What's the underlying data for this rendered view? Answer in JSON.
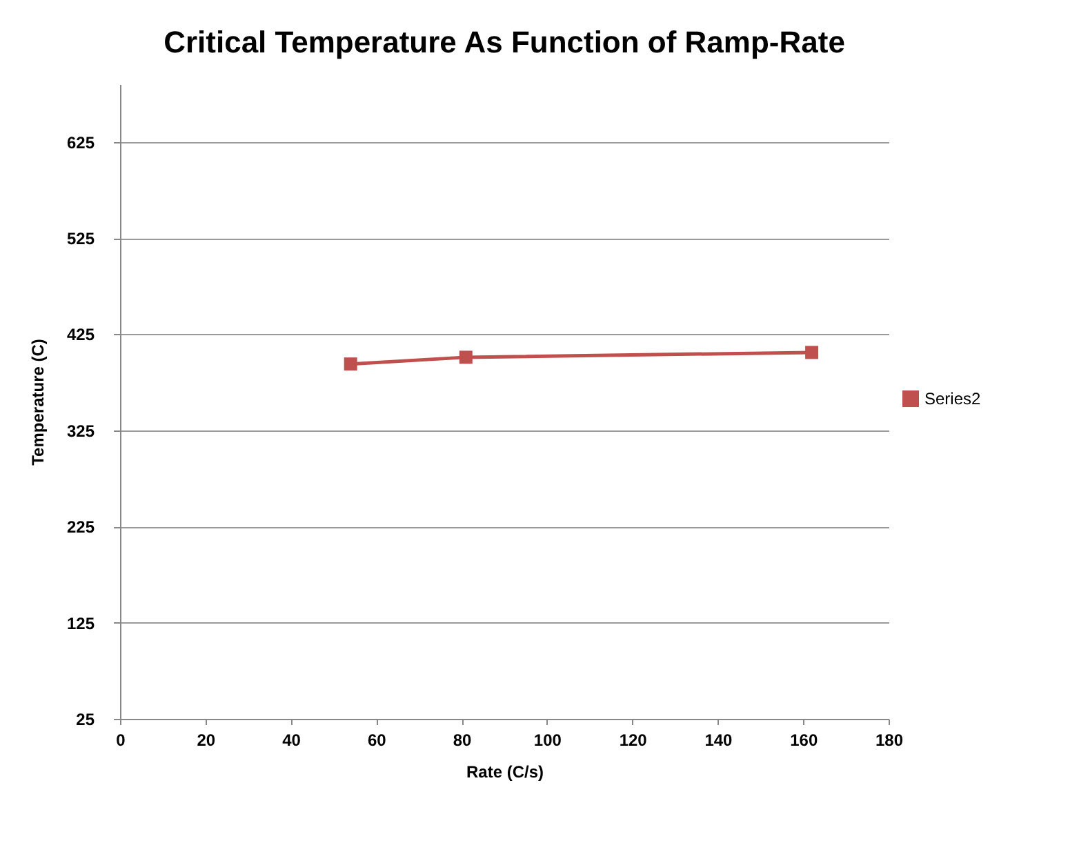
{
  "chart_data": {
    "type": "line",
    "title": "Critical Temperature As Function of Ramp-Rate",
    "xlabel": "Rate (C/s)",
    "ylabel": "Temperature (C)",
    "x": [
      54,
      81,
      162
    ],
    "series": [
      {
        "name": "Series2",
        "color": "#c0504d",
        "values": [
          394,
          401,
          406
        ]
      }
    ],
    "xlim": [
      0,
      180
    ],
    "xticks": [
      0,
      20,
      40,
      60,
      80,
      100,
      120,
      140,
      160,
      180
    ],
    "ylim": [
      25,
      685
    ],
    "yticks": [
      25,
      125,
      225,
      325,
      425,
      525,
      625
    ],
    "grid": "y",
    "legend": "right",
    "marker": "square",
    "line_style": "solid"
  }
}
